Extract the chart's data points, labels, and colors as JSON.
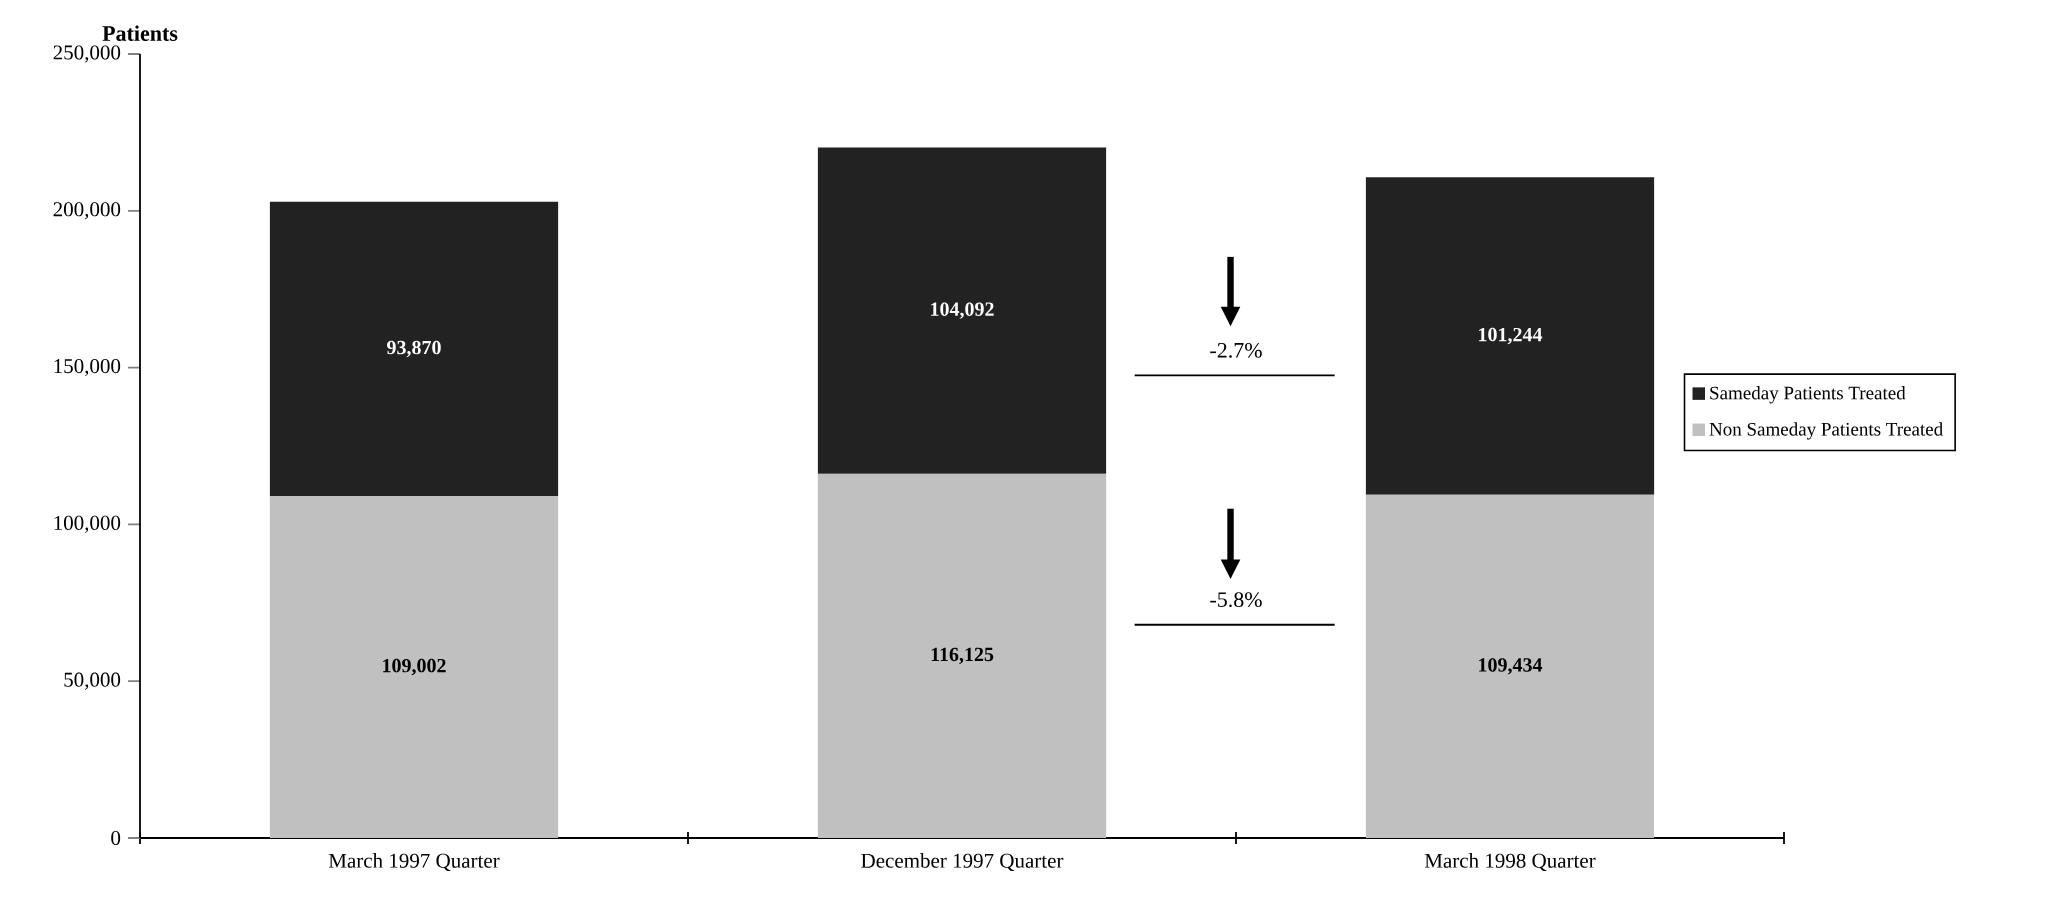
{
  "chart_data": {
    "type": "bar",
    "stacked": true,
    "ylabel": "Patients",
    "categories": [
      "March 1997 Quarter",
      "December 1997 Quarter",
      "March 1998 Quarter"
    ],
    "series": [
      {
        "name": "Non Sameday Patients Treated",
        "color": "#c0c0c0",
        "values": [
          109002,
          116125,
          109434
        ],
        "value_labels": [
          "109,002",
          "116,125",
          "109,434"
        ]
      },
      {
        "name": "Sameday Patients Treated",
        "color": "#222222",
        "values": [
          93870,
          104092,
          101244
        ],
        "value_labels": [
          "93,870",
          "104,092",
          "101,244"
        ]
      }
    ],
    "ylim": [
      0,
      250000
    ],
    "yticks": [
      {
        "value": 0,
        "label": "0"
      },
      {
        "value": 50000,
        "label": "50,000"
      },
      {
        "value": 100000,
        "label": "100,000"
      },
      {
        "value": 150000,
        "label": "150,000"
      },
      {
        "value": 200000,
        "label": "200,000"
      },
      {
        "value": 250000,
        "label": "250,000"
      }
    ],
    "legend": "right",
    "grid": false,
    "annotations": [
      "-2.7%",
      "-5.8%"
    ]
  }
}
